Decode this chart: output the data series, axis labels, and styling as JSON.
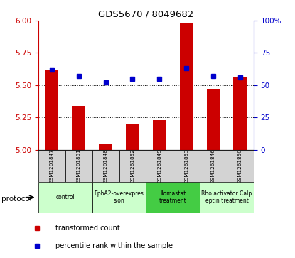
{
  "title": "GDS5670 / 8049682",
  "samples": [
    "GSM1261847",
    "GSM1261851",
    "GSM1261848",
    "GSM1261852",
    "GSM1261849",
    "GSM1261853",
    "GSM1261846",
    "GSM1261850"
  ],
  "transformed_counts": [
    5.62,
    5.34,
    5.04,
    5.2,
    5.23,
    5.98,
    5.47,
    5.56
  ],
  "percentile_ranks": [
    62,
    57,
    52,
    55,
    55,
    63,
    57,
    56
  ],
  "ylim_left": [
    5.0,
    6.0
  ],
  "ylim_right": [
    0,
    100
  ],
  "yticks_left": [
    5.0,
    5.25,
    5.5,
    5.75,
    6.0
  ],
  "yticks_right": [
    0,
    25,
    50,
    75,
    100
  ],
  "bar_color": "#cc0000",
  "dot_color": "#0000cc",
  "bar_bottom": 5.0,
  "protocols": [
    {
      "label": "control",
      "samples": [
        0,
        1
      ],
      "color": "#ccffcc"
    },
    {
      "label": "EphA2-overexpres\nsion",
      "samples": [
        2,
        3
      ],
      "color": "#ccffcc"
    },
    {
      "label": "Ilomastat\ntreatment",
      "samples": [
        4,
        5
      ],
      "color": "#44cc44"
    },
    {
      "label": "Rho activator Calp\neptin treatment",
      "samples": [
        6,
        7
      ],
      "color": "#ccffcc"
    }
  ],
  "tick_label_color_left": "#cc0000",
  "tick_label_color_right": "#0000cc",
  "sample_box_color": "#d3d3d3",
  "legend_items": [
    {
      "label": "transformed count",
      "color": "#cc0000"
    },
    {
      "label": "percentile rank within the sample",
      "color": "#0000cc"
    }
  ]
}
